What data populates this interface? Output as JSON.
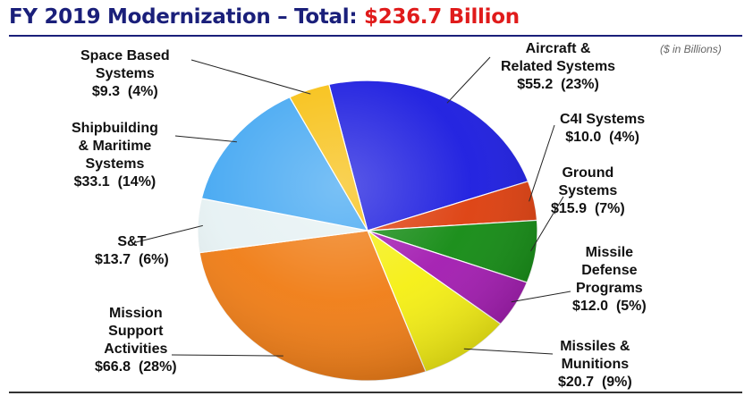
{
  "header": {
    "title": "FY 2019 Modernization – Total:",
    "total": "$236.7 Billion",
    "units_note": "($ in Billions)"
  },
  "chart_data": {
    "type": "pie",
    "title": "FY 2019 Modernization – Total: $236.7 Billion",
    "units": "($ in Billions)",
    "slices": [
      {
        "name": "Aircraft & Related Systems",
        "label_lines": [
          "Aircraft &",
          "Related Systems"
        ],
        "value": 55.2,
        "value_text": "$55.2",
        "pct": "(23%)",
        "color": "#1a1adf"
      },
      {
        "name": "C4I Systems",
        "label_lines": [
          "C4I Systems"
        ],
        "value": 10.0,
        "value_text": "$10.0",
        "pct": "(4%)",
        "color": "#dd3d0c"
      },
      {
        "name": "Ground Systems",
        "label_lines": [
          "Ground",
          "Systems"
        ],
        "value": 15.9,
        "value_text": "$15.9",
        "pct": "(7%)",
        "color": "#128a12"
      },
      {
        "name": "Missile Defense Programs",
        "label_lines": [
          "Missile",
          "Defense",
          "Programs"
        ],
        "value": 12.0,
        "value_text": "$12.0",
        "pct": "(5%)",
        "color": "#a21ab0"
      },
      {
        "name": "Missiles & Munitions",
        "label_lines": [
          "Missiles &",
          "Munitions"
        ],
        "value": 20.7,
        "value_text": "$20.7",
        "pct": "(9%)",
        "color": "#f5ef12"
      },
      {
        "name": "Mission Support Activities",
        "label_lines": [
          "Mission",
          "Support",
          "Activities"
        ],
        "value": 66.8,
        "value_text": "$66.8",
        "pct": "(28%)",
        "color": "#f07c14"
      },
      {
        "name": "S&T",
        "label_lines": [
          "S&T"
        ],
        "value": 13.7,
        "value_text": "$13.7",
        "pct": "(6%)",
        "color": "#e6f1f3"
      },
      {
        "name": "Shipbuilding & Maritime Systems",
        "label_lines": [
          "Shipbuilding",
          "& Maritime",
          "Systems"
        ],
        "value": 33.1,
        "value_text": "$33.1",
        "pct": "(14%)",
        "color": "#45a8f2"
      },
      {
        "name": "Space Based Systems",
        "label_lines": [
          "Space Based",
          "Systems"
        ],
        "value": 9.3,
        "value_text": "$9.3",
        "pct": "(4%)",
        "color": "#f7c012"
      }
    ]
  }
}
